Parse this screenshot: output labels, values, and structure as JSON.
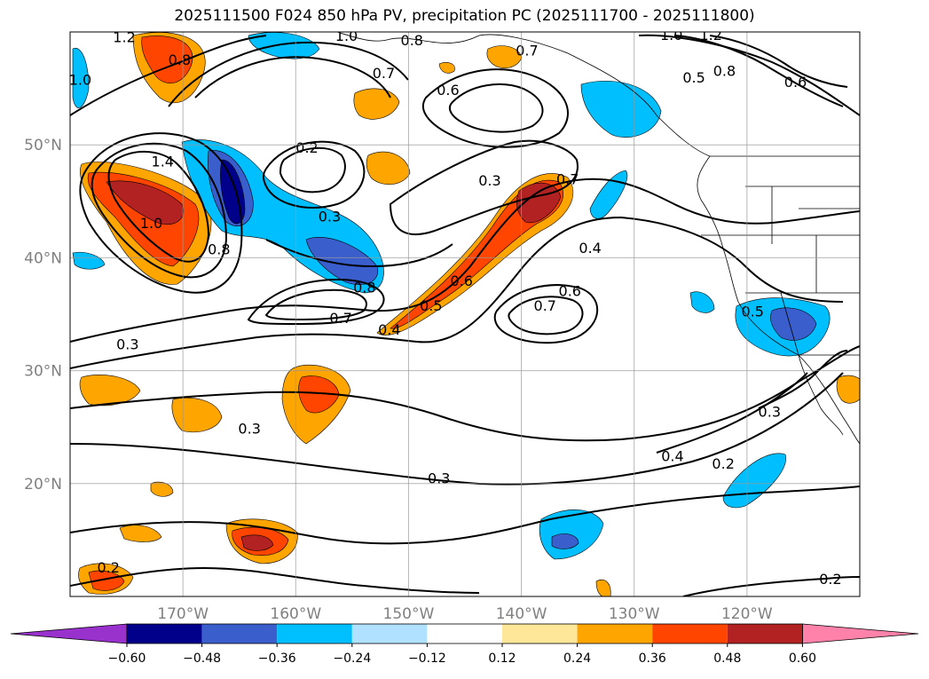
{
  "title": "2025111500 F024 850 hPa PV, precipitation PC (2025111700 - 2025111800)",
  "map": {
    "lon_range": [
      -180,
      -110
    ],
    "lat_range": [
      10,
      60
    ],
    "lon_ticks": [
      {
        "lon": -170,
        "label": "170°W"
      },
      {
        "lon": -160,
        "label": "160°W"
      },
      {
        "lon": -150,
        "label": "150°W"
      },
      {
        "lon": -140,
        "label": "140°W"
      },
      {
        "lon": -130,
        "label": "130°W"
      },
      {
        "lon": -120,
        "label": "120°W"
      }
    ],
    "lat_ticks": [
      {
        "lat": 20,
        "label": "20°N"
      },
      {
        "lat": 30,
        "label": "30°N"
      },
      {
        "lat": 40,
        "label": "40°N"
      },
      {
        "lat": 50,
        "label": "50°N"
      }
    ],
    "grid": true,
    "contour_labels": [
      {
        "text": "1.2",
        "lon": -175.2,
        "lat": 59.5
      },
      {
        "text": "0.8",
        "lon": -170.3,
        "lat": 57.5
      },
      {
        "text": "1.0",
        "lon": -179.1,
        "lat": 55.7
      },
      {
        "text": "1.0",
        "lon": -155.5,
        "lat": 59.6
      },
      {
        "text": "0.8",
        "lon": -149.7,
        "lat": 59.2
      },
      {
        "text": "0.7",
        "lon": -152.2,
        "lat": 56.3
      },
      {
        "text": "0.7",
        "lon": -139.5,
        "lat": 58.3
      },
      {
        "text": "0.6",
        "lon": -146.5,
        "lat": 54.8
      },
      {
        "text": "1.0",
        "lon": -126.7,
        "lat": 59.7
      },
      {
        "text": "1.2",
        "lon": -123.2,
        "lat": 59.7
      },
      {
        "text": "0.8",
        "lon": -122.0,
        "lat": 56.5
      },
      {
        "text": "0.5",
        "lon": -124.7,
        "lat": 55.9
      },
      {
        "text": "0.6",
        "lon": -115.7,
        "lat": 55.5
      },
      {
        "text": "0.2",
        "lon": -159.0,
        "lat": 49.7
      },
      {
        "text": "1.4",
        "lon": -171.8,
        "lat": 48.5
      },
      {
        "text": "0.3",
        "lon": -142.8,
        "lat": 46.8
      },
      {
        "text": "0.7",
        "lon": -135.9,
        "lat": 46.9
      },
      {
        "text": "0.3",
        "lon": -157.0,
        "lat": 43.6
      },
      {
        "text": "1.0",
        "lon": -172.8,
        "lat": 43.0
      },
      {
        "text": "0.8",
        "lon": -166.8,
        "lat": 40.7
      },
      {
        "text": "0.4",
        "lon": -133.9,
        "lat": 40.8
      },
      {
        "text": "0.8",
        "lon": -153.9,
        "lat": 37.3
      },
      {
        "text": "0.6",
        "lon": -145.3,
        "lat": 37.9
      },
      {
        "text": "0.6",
        "lon": -135.7,
        "lat": 37.0
      },
      {
        "text": "0.5",
        "lon": -148.0,
        "lat": 35.7
      },
      {
        "text": "0.7",
        "lon": -137.9,
        "lat": 35.7
      },
      {
        "text": "0.5",
        "lon": -119.5,
        "lat": 35.2
      },
      {
        "text": "0.7",
        "lon": -156.0,
        "lat": 34.6
      },
      {
        "text": "0.4",
        "lon": -151.7,
        "lat": 33.6
      },
      {
        "text": "0.3",
        "lon": -174.9,
        "lat": 32.3
      },
      {
        "text": "0.3",
        "lon": -164.1,
        "lat": 24.8
      },
      {
        "text": "0.3",
        "lon": -118.0,
        "lat": 26.3
      },
      {
        "text": "0.4",
        "lon": -126.6,
        "lat": 22.4
      },
      {
        "text": "0.2",
        "lon": -122.1,
        "lat": 21.7
      },
      {
        "text": "0.3",
        "lon": -147.3,
        "lat": 20.4
      },
      {
        "text": "0.2",
        "lon": -176.6,
        "lat": 12.5
      },
      {
        "text": "0.2",
        "lon": -112.6,
        "lat": 11.5
      }
    ],
    "pv_contour_color": "#000000"
  },
  "colorbar": {
    "colors": [
      "#9932cc",
      "#00008b",
      "#3a5fcd",
      "#00bfff",
      "#b0e2ff",
      "#ffffff",
      "#ffe799",
      "#ffa500",
      "#ff4500",
      "#b22222",
      "#ff82ab"
    ],
    "tick_labels": [
      "−0.60",
      "−0.48",
      "−0.36",
      "−0.24",
      "−0.12",
      "0.12",
      "0.24",
      "0.36",
      "0.48",
      "0.60"
    ]
  }
}
